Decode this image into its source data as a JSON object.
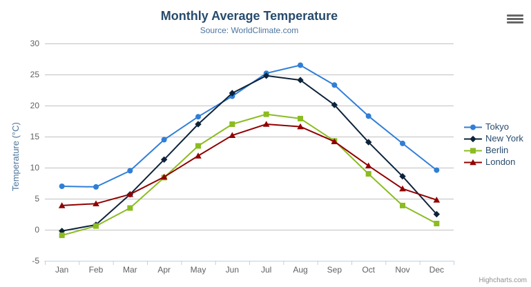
{
  "chart_data": {
    "type": "line",
    "title": "Monthly Average Temperature",
    "subtitle": "Source: WorldClimate.com",
    "xlabel": "",
    "ylabel": "Temperature (°C)",
    "ylim": [
      -5,
      30
    ],
    "ytick_step": 5,
    "grid": true,
    "legend_position": "right",
    "categories": [
      "Jan",
      "Feb",
      "Mar",
      "Apr",
      "May",
      "Jun",
      "Jul",
      "Aug",
      "Sep",
      "Oct",
      "Nov",
      "Dec"
    ],
    "series": [
      {
        "name": "Tokyo",
        "color": "#2f7ed8",
        "marker": "circle",
        "values": [
          7.0,
          6.9,
          9.5,
          14.5,
          18.2,
          21.5,
          25.2,
          26.5,
          23.3,
          18.3,
          13.9,
          9.6
        ]
      },
      {
        "name": "New York",
        "color": "#0d233a",
        "marker": "diamond",
        "values": [
          -0.2,
          0.8,
          5.7,
          11.3,
          17.0,
          22.0,
          24.8,
          24.1,
          20.1,
          14.1,
          8.6,
          2.5
        ]
      },
      {
        "name": "Berlin",
        "color": "#8bbc21",
        "marker": "square",
        "values": [
          -0.9,
          0.6,
          3.5,
          8.4,
          13.5,
          17.0,
          18.6,
          17.9,
          14.3,
          9.0,
          3.9,
          1.0
        ]
      },
      {
        "name": "London",
        "color": "#910000",
        "marker": "triangle",
        "values": [
          3.9,
          4.2,
          5.7,
          8.5,
          11.9,
          15.2,
          17.0,
          16.6,
          14.2,
          10.3,
          6.6,
          4.8
        ]
      }
    ]
  },
  "export_menu": {
    "icon": "hamburger"
  },
  "credits": {
    "label": "Highcharts.com"
  },
  "style_colors": {
    "title": "#274b6d",
    "subtitle": "#4d759e",
    "axis_labels": "#606060",
    "gridline": "#c0c0c0",
    "axis_line": "#c0d0e0",
    "legend_text": "#274b6d",
    "credits_text": "#909090"
  }
}
